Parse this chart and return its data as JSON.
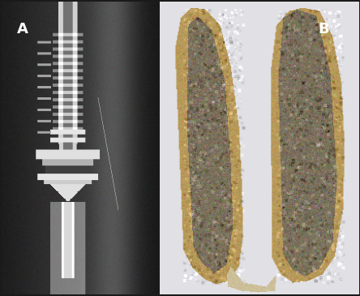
{
  "panel_A_label": "A",
  "panel_B_label": "B",
  "label_color": "#ffffff",
  "label_fontsize": 13,
  "label_fontweight": "bold",
  "background_color": "#1a1a1a",
  "fig_width": 4.44,
  "fig_height": 3.65,
  "dpi": 100
}
